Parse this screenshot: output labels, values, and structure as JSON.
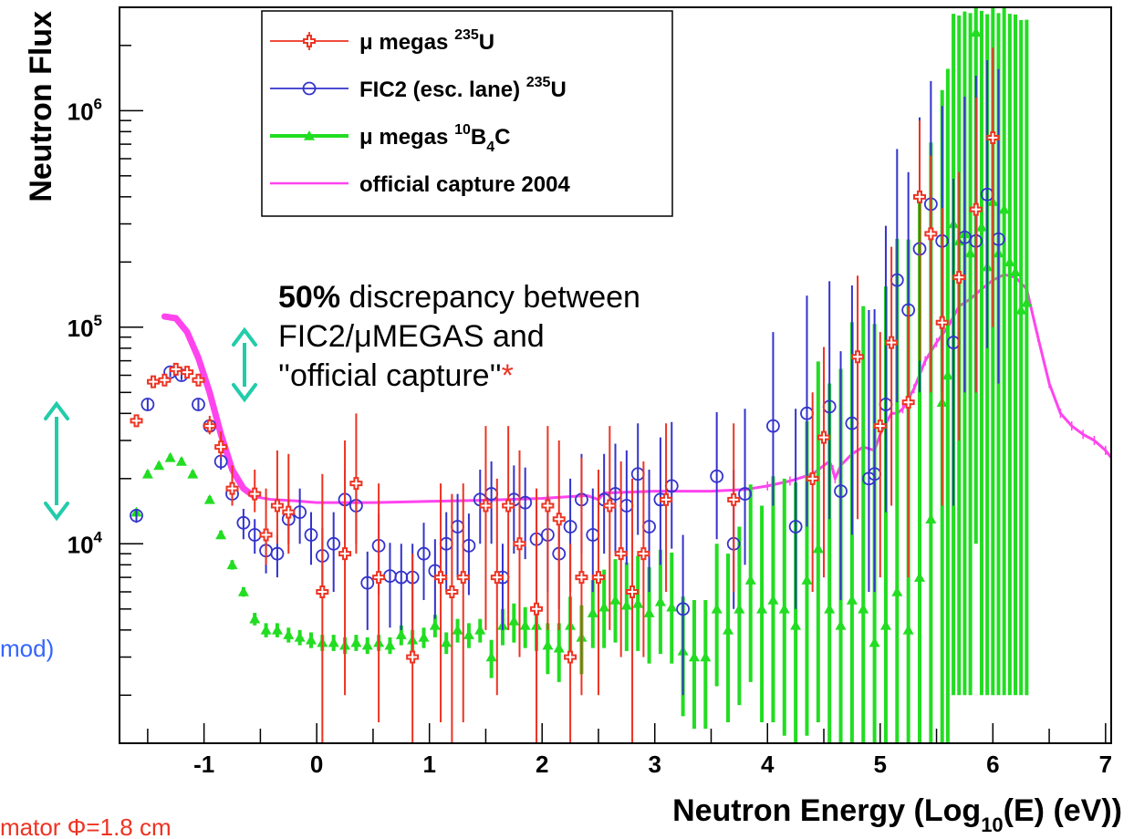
{
  "colors": {
    "umegas_u235": "#ee3322",
    "fic2_u235": "#3333cc",
    "umegas_b4c": "#22dd22",
    "official_capture": "#ff44ee",
    "arrow": "#22ccaa",
    "asterisk": "#ee3322",
    "side_note": "#3366ff",
    "bottom_note": "#ee3322"
  },
  "annotation": {
    "bold": "50%",
    "line1_rest": " discrepancy between",
    "line2": "FIC2/μMEGAS and",
    "line3": "''official capture''",
    "asterisk": "*"
  },
  "side_note": "mod)",
  "bottom_note": "mator  Φ=1.8 cm",
  "chart_data": {
    "type": "scatter",
    "xlabel": "Neutron Energy (Log10(E) (eV))",
    "xlabel_parts": {
      "main": "Neutron Energy (Log",
      "sub": "10",
      "tail": "(E) (eV))"
    },
    "ylabel": "Neutron Flux",
    "xlim": [
      -1.75,
      7.05
    ],
    "ylim": [
      1200,
      3000000
    ],
    "yscale": "log",
    "x_ticks": [
      -1,
      0,
      1,
      2,
      3,
      4,
      5,
      6,
      7
    ],
    "x_tick_labels": [
      "-1",
      "0",
      "1",
      "2",
      "3",
      "4",
      "5",
      "6",
      "7"
    ],
    "y_ticks": [
      10000,
      100000,
      1000000
    ],
    "y_tick_labels": [
      {
        "base": "10",
        "exp": "4"
      },
      {
        "base": "10",
        "exp": "5"
      },
      {
        "base": "10",
        "exp": "6"
      }
    ],
    "grid": false,
    "legend_position": "top-left",
    "legend": [
      {
        "key": "umegas_u235",
        "pre": "μ megas ",
        "sup": "235",
        "post": "U",
        "sub": "",
        "post2": ""
      },
      {
        "key": "fic2_u235",
        "pre": "FIC2 (esc. lane) ",
        "sup": "235",
        "post": "U",
        "sub": "",
        "post2": ""
      },
      {
        "key": "umegas_b4c",
        "pre": "μ megas ",
        "sup": "10",
        "post": "B",
        "sub": "4",
        "post2": "C"
      },
      {
        "key": "official_capture",
        "pre": "official capture 2004",
        "sup": "",
        "post": "",
        "sub": "",
        "post2": ""
      }
    ],
    "series": [
      {
        "name": "μ megas 235U",
        "key": "umegas_u235",
        "marker": "cross",
        "x": [
          -1.6,
          -1.45,
          -1.35,
          -1.25,
          -1.15,
          -1.05,
          -0.95,
          -0.85,
          -0.75,
          -0.55,
          -0.45,
          -0.35,
          -0.25,
          0.05,
          0.25,
          0.35,
          0.55,
          0.85,
          1.1,
          1.2,
          1.3,
          1.5,
          1.6,
          1.7,
          1.8,
          1.95,
          2.05,
          2.15,
          2.25,
          2.35,
          2.5,
          2.6,
          2.7,
          2.8,
          2.9,
          3.1,
          3.7,
          4.4,
          4.5,
          4.8,
          5.0,
          5.1,
          5.25,
          5.35,
          5.45,
          5.55,
          5.7,
          5.85,
          6.0
        ],
        "y": [
          37000,
          56000,
          57000,
          64000,
          62000,
          57000,
          35000,
          28000,
          18000,
          17000,
          11000,
          15000,
          14000,
          6000,
          9000,
          19000,
          7000,
          3000,
          7000,
          6000,
          7000,
          15000,
          7000,
          15000,
          10000,
          5000,
          15000,
          13000,
          3000,
          7000,
          7000,
          15000,
          9000,
          6000,
          9000,
          16000,
          16000,
          20000,
          31000,
          73000,
          35000,
          85000,
          45000,
          400000,
          270000,
          105000,
          170000,
          350000,
          750000
        ],
        "err_lo": [
          2000,
          3000,
          3000,
          3500,
          3000,
          3000,
          3000,
          3000,
          3000,
          3000,
          3000,
          5000,
          5000,
          4800,
          7000,
          10000,
          5500,
          2900,
          5500,
          4800,
          5500,
          11000,
          5000,
          11000,
          7000,
          3800,
          11000,
          9000,
          2800,
          5000,
          5000,
          11000,
          6000,
          4800,
          6000,
          10000,
          10000,
          14000,
          24000,
          60000,
          28000,
          70000,
          38000,
          330000,
          220000,
          90000,
          140000,
          300000,
          650000
        ],
        "err_hi": [
          2000,
          3000,
          3000,
          3500,
          3000,
          3000,
          4000,
          5000,
          5000,
          5000,
          7000,
          12000,
          12000,
          15000,
          21000,
          21000,
          12000,
          6000,
          12000,
          11000,
          12000,
          20000,
          13000,
          20000,
          17000,
          13000,
          20000,
          17000,
          7000,
          18000,
          15000,
          20000,
          15000,
          14000,
          15000,
          20000,
          20000,
          30000,
          50000,
          100000,
          60000,
          150000,
          80000,
          500000,
          350000,
          250000,
          350000,
          800000,
          1200000
        ]
      },
      {
        "name": "FIC2 (esc. lane) 235U",
        "key": "fic2_u235",
        "marker": "circle",
        "x": [
          -1.6,
          -1.5,
          -1.3,
          -1.2,
          -1.05,
          -0.95,
          -0.85,
          -0.75,
          -0.65,
          -0.55,
          -0.45,
          -0.35,
          -0.25,
          -0.15,
          -0.05,
          0.05,
          0.15,
          0.25,
          0.35,
          0.45,
          0.55,
          0.65,
          0.75,
          0.85,
          0.95,
          1.05,
          1.15,
          1.25,
          1.35,
          1.45,
          1.55,
          1.65,
          1.75,
          1.85,
          1.95,
          2.05,
          2.15,
          2.25,
          2.35,
          2.45,
          2.55,
          2.65,
          2.75,
          2.85,
          2.95,
          3.05,
          3.15,
          3.25,
          3.55,
          3.7,
          3.8,
          4.05,
          4.25,
          4.35,
          4.55,
          4.65,
          4.75,
          4.9,
          4.95,
          5.05,
          5.15,
          5.25,
          5.35,
          5.45,
          5.55,
          5.65,
          5.75,
          5.85,
          5.95,
          6.05
        ],
        "y": [
          13500,
          44000,
          62000,
          60000,
          44000,
          35000,
          24000,
          17000,
          12500,
          11000,
          9300,
          9000,
          13000,
          14000,
          11000,
          8800,
          10000,
          16000,
          15000,
          6600,
          9800,
          7100,
          7000,
          7000,
          9000,
          7500,
          10000,
          12000,
          9800,
          16000,
          17000,
          7000,
          16000,
          15500,
          10500,
          11000,
          9000,
          12000,
          16000,
          11000,
          16000,
          17000,
          15000,
          21000,
          12000,
          16000,
          18500,
          5000,
          20500,
          10000,
          17000,
          35000,
          12000,
          40000,
          43000,
          17500,
          36000,
          20000,
          21000,
          44000,
          165000,
          120000,
          230000,
          370000,
          250000,
          85000,
          260000,
          250000,
          410000,
          255000
        ],
        "err_lo": [
          1000,
          2500,
          3000,
          3000,
          2500,
          2000,
          2000,
          2000,
          2000,
          2000,
          2000,
          2000,
          3000,
          4000,
          3000,
          3000,
          4000,
          6000,
          5000,
          2600,
          4000,
          3000,
          3000,
          3000,
          3500,
          3000,
          4000,
          5000,
          4000,
          6000,
          7000,
          3000,
          7000,
          7000,
          5000,
          5000,
          4000,
          6000,
          7000,
          5000,
          7000,
          8000,
          7000,
          10000,
          6000,
          8000,
          9000,
          3000,
          10000,
          5000,
          9000,
          20000,
          7000,
          28000,
          30000,
          12000,
          25000,
          14000,
          15000,
          30000,
          120000,
          90000,
          180000,
          300000,
          200000,
          70000,
          210000,
          200000,
          330000,
          200000
        ],
        "err_hi": [
          1000,
          2500,
          3000,
          3000,
          2500,
          2000,
          2000,
          2000,
          2000,
          2000,
          2000,
          2000,
          3000,
          4000,
          3000,
          3000,
          4000,
          6000,
          5000,
          2600,
          4000,
          3000,
          3000,
          3000,
          3500,
          3000,
          4000,
          5000,
          4000,
          6000,
          7000,
          3000,
          7000,
          7000,
          5000,
          6000,
          5000,
          8000,
          10000,
          7000,
          10000,
          12000,
          12000,
          15000,
          10000,
          15000,
          18000,
          6000,
          20000,
          12000,
          25000,
          60000,
          30000,
          100000,
          120000,
          60000,
          120000,
          100000,
          100000,
          250000,
          500000,
          400000,
          700000,
          1000000,
          800000,
          400000,
          900000,
          1200000,
          1300000,
          1300000
        ]
      },
      {
        "name": "μ megas 10B4C",
        "key": "umegas_b4c",
        "marker": "triangle",
        "x": [
          -1.6,
          -1.5,
          -1.4,
          -1.3,
          -1.2,
          -1.1,
          -0.95,
          -0.85,
          -0.75,
          -0.65,
          -0.55,
          -0.45,
          -0.35,
          -0.25,
          -0.15,
          -0.05,
          0.05,
          0.15,
          0.25,
          0.35,
          0.45,
          0.55,
          0.65,
          0.75,
          0.85,
          0.95,
          1.05,
          1.15,
          1.25,
          1.35,
          1.45,
          1.55,
          1.65,
          1.75,
          1.85,
          1.95,
          2.05,
          2.15,
          2.25,
          2.35,
          2.45,
          2.55,
          2.65,
          2.75,
          2.85,
          2.95,
          3.05,
          3.15,
          3.25,
          3.35,
          3.45,
          3.55,
          3.65,
          3.75,
          3.85,
          3.95,
          4.05,
          4.15,
          4.25,
          4.35,
          4.45,
          4.55,
          4.65,
          4.75,
          4.85,
          4.95,
          5.05,
          5.15,
          5.25,
          5.35,
          5.45,
          5.55,
          5.6,
          5.65,
          5.7,
          5.75,
          5.8,
          5.85,
          5.9,
          5.95,
          6.0,
          6.05,
          6.1,
          6.15,
          6.2,
          6.25,
          6.3
        ],
        "y": [
          14000,
          21000,
          23000,
          25000,
          24000,
          21000,
          16000,
          11000,
          8000,
          6000,
          4500,
          4000,
          4000,
          3800,
          3700,
          3600,
          3500,
          3500,
          3400,
          3500,
          3400,
          3500,
          3400,
          3800,
          3600,
          3700,
          4200,
          3500,
          4000,
          3800,
          4000,
          3000,
          4200,
          4400,
          4200,
          4200,
          3400,
          3300,
          4200,
          3700,
          4800,
          5100,
          5500,
          5200,
          5300,
          4800,
          5400,
          5100,
          3200,
          3000,
          3000,
          5000,
          4000,
          5000,
          6800,
          5000,
          5500,
          5000,
          4200,
          6800,
          9500,
          5000,
          4200,
          5500,
          5000,
          3500,
          4200,
          6000,
          4000,
          7000,
          13000,
          45000,
          60000,
          300000,
          250000,
          270000,
          220000,
          2300000,
          290000,
          190000,
          380000,
          220000,
          350000,
          200000,
          180000,
          120000,
          130000
        ],
        "err_lo": [
          500,
          800,
          800,
          900,
          900,
          800,
          600,
          500,
          400,
          300,
          300,
          300,
          300,
          300,
          300,
          300,
          300,
          300,
          300,
          300,
          300,
          300,
          300,
          400,
          400,
          400,
          500,
          400,
          500,
          500,
          500,
          600,
          800,
          900,
          900,
          1000,
          900,
          1000,
          1200,
          1200,
          1500,
          1800,
          2000,
          2000,
          2100,
          2000,
          2300,
          2300,
          1600,
          1600,
          1600,
          2800,
          2500,
          3200,
          4500,
          3500,
          4000,
          3700,
          3300,
          5500,
          8000,
          4400,
          3800,
          5100,
          4700,
          3300,
          4000,
          5800,
          3800,
          6800,
          12700,
          44000,
          59000,
          298000,
          248000,
          268000,
          218000,
          2290000,
          288000,
          188000,
          378000,
          218000,
          348000,
          198000,
          178000,
          118000,
          128000
        ],
        "err_hi": [
          500,
          800,
          800,
          900,
          900,
          800,
          600,
          500,
          400,
          300,
          300,
          300,
          300,
          300,
          300,
          300,
          300,
          300,
          300,
          300,
          300,
          300,
          300,
          400,
          400,
          400,
          500,
          400,
          500,
          500,
          500,
          600,
          800,
          900,
          900,
          1000,
          900,
          1000,
          1500,
          1500,
          2000,
          2500,
          3000,
          3000,
          3500,
          3000,
          4000,
          4000,
          2500,
          2500,
          2500,
          5000,
          5000,
          7000,
          12000,
          10000,
          15000,
          15000,
          15000,
          30000,
          60000,
          50000,
          60000,
          100000,
          120000,
          100000,
          150000,
          250000,
          250000,
          400000,
          700000,
          1200000,
          1500000,
          2500000,
          2500000,
          2600000,
          2600000,
          3000000,
          2600000,
          2600000,
          2700000,
          2600000,
          2700000,
          2600000,
          2600000,
          2500000,
          2500000
        ]
      },
      {
        "name": "official capture 2004",
        "key": "official_capture",
        "marker": "line",
        "thick_segment_end_x": -0.55,
        "x": [
          -1.35,
          -1.25,
          -1.15,
          -1.05,
          -0.95,
          -0.85,
          -0.75,
          -0.65,
          -0.55,
          -0.4,
          -0.2,
          0.0,
          0.5,
          1.0,
          1.5,
          2.0,
          2.4,
          2.5,
          2.55,
          2.6,
          3.0,
          3.5,
          3.8,
          4.0,
          4.2,
          4.4,
          4.5,
          4.55,
          4.58,
          4.6,
          4.65,
          4.75,
          4.85,
          4.95,
          5.0,
          5.05,
          5.1,
          5.15,
          5.2,
          5.3,
          5.4,
          5.5,
          5.6,
          5.7,
          5.75,
          5.8,
          5.9,
          6.0,
          6.1,
          6.2,
          6.3,
          6.4,
          6.5,
          6.6,
          6.7,
          6.8,
          6.9,
          7.0,
          7.05
        ],
        "y": [
          112000,
          110000,
          95000,
          72000,
          50000,
          32000,
          22000,
          18000,
          16500,
          16000,
          15800,
          15500,
          15500,
          15700,
          15900,
          16200,
          16700,
          16000,
          17200,
          17200,
          17500,
          17500,
          17800,
          18500,
          19500,
          21000,
          23000,
          24000,
          22000,
          20000,
          23000,
          26000,
          28000,
          27000,
          32000,
          36000,
          40000,
          40000,
          42000,
          52000,
          70000,
          85000,
          100000,
          125000,
          130000,
          135000,
          150000,
          165000,
          175000,
          170000,
          150000,
          90000,
          55000,
          40000,
          35000,
          32000,
          30000,
          27000,
          25000
        ]
      }
    ]
  }
}
